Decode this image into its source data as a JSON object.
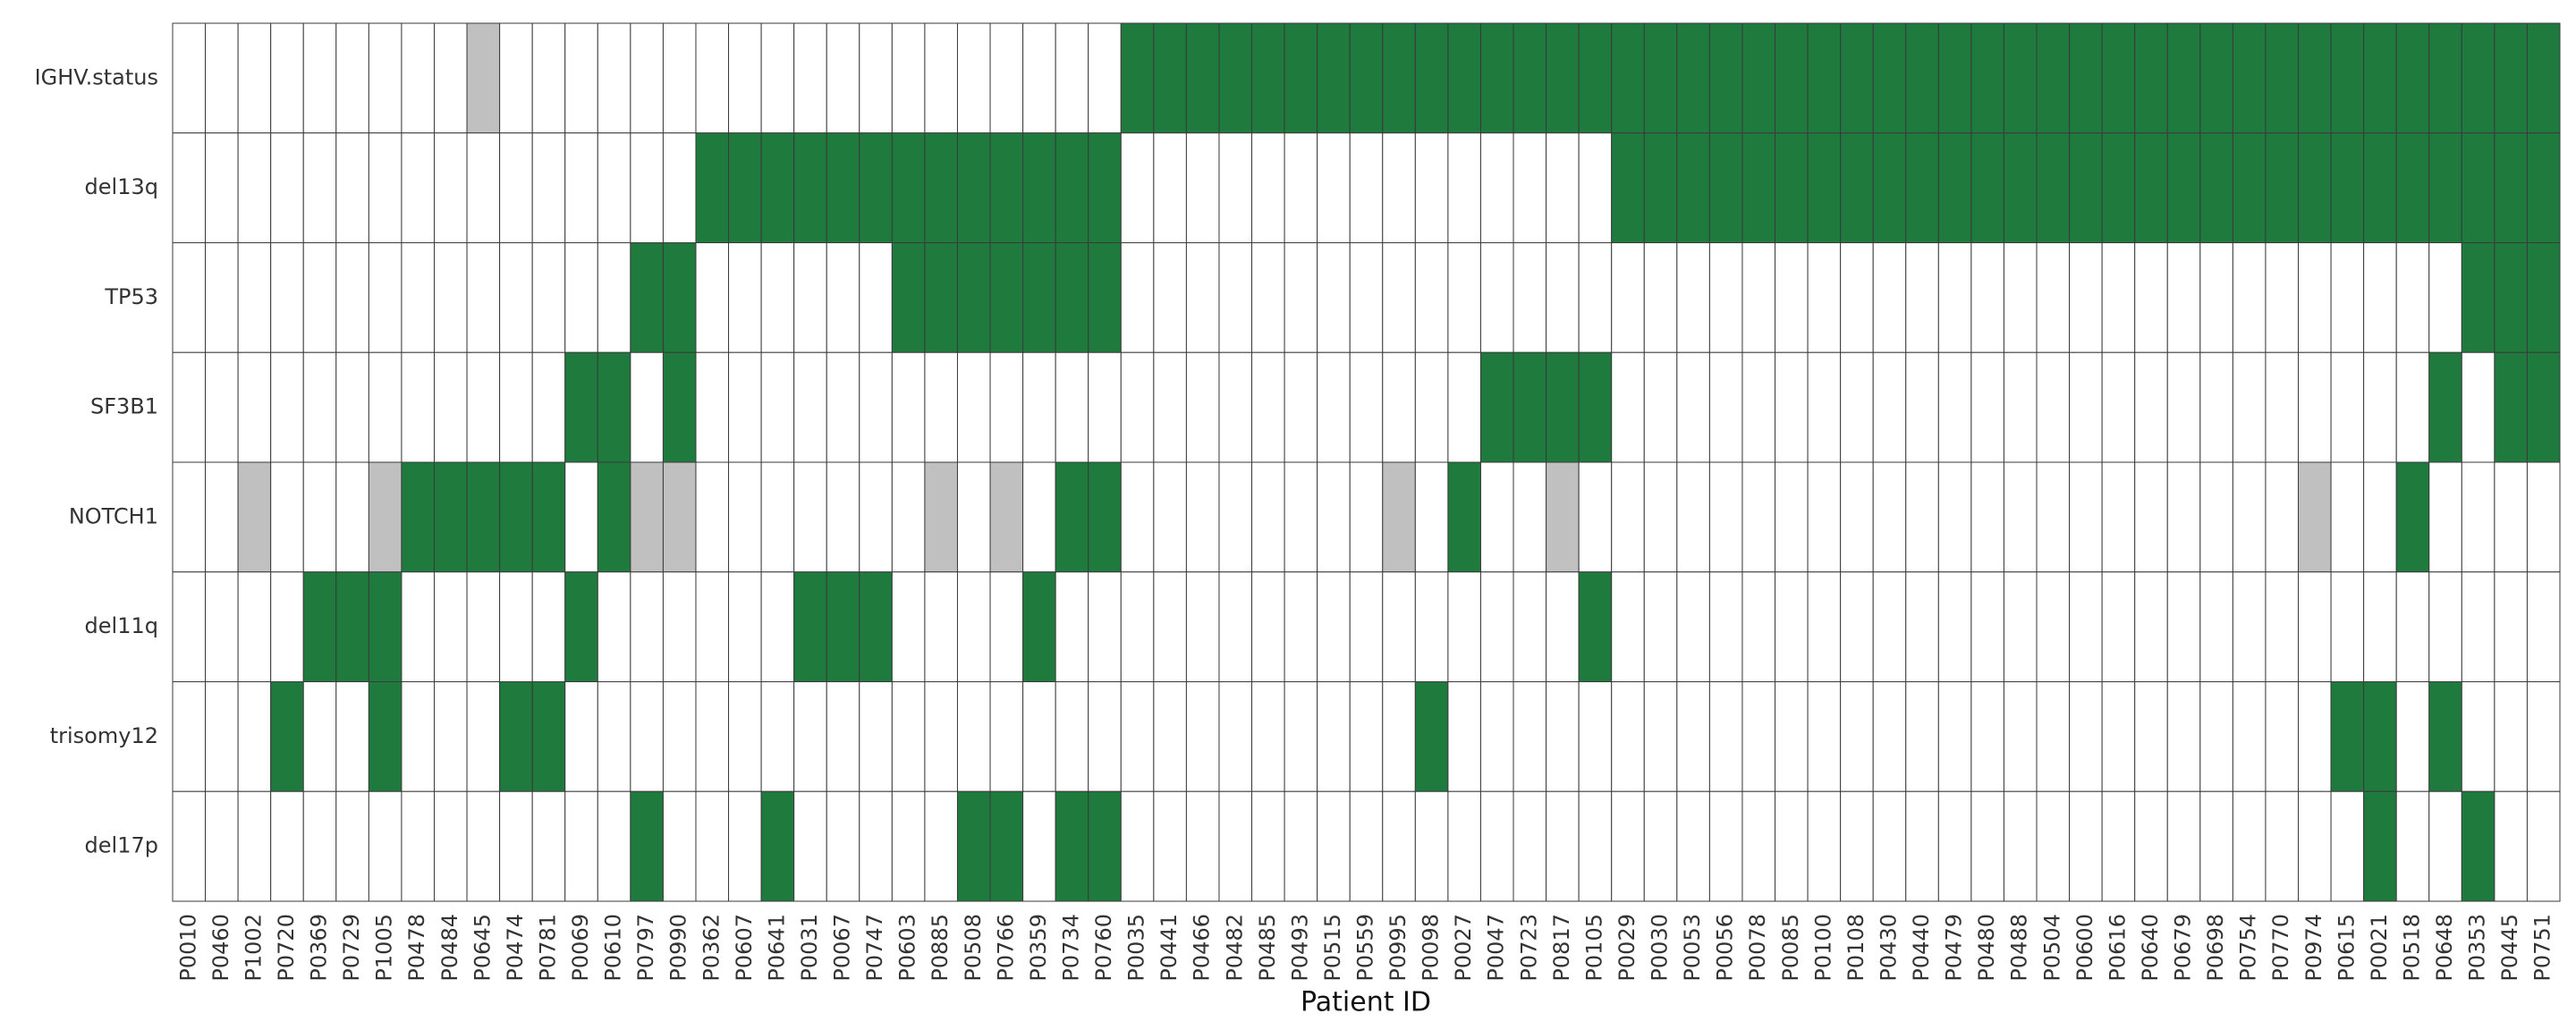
{
  "chart_data": {
    "type": "heatmap",
    "x_label": "Patient ID",
    "color": "#1f7a3e",
    "empty_color": "#ffffff",
    "missing_color": "#c0c0c0",
    "categories": [
      "P0010",
      "P0460",
      "P1002",
      "P0720",
      "P0369",
      "P0729",
      "P1005",
      "P0478",
      "P0484",
      "P0645",
      "P0474",
      "P0781",
      "P0069",
      "P0610",
      "P0797",
      "P0990",
      "P0362",
      "P0607",
      "P0641",
      "P0031",
      "P0067",
      "P0747",
      "P0603",
      "P0885",
      "P0508",
      "P0766",
      "P0359",
      "P0734",
      "P0760",
      "P0035",
      "P0441",
      "P0466",
      "P0482",
      "P0485",
      "P0493",
      "P0515",
      "P0559",
      "P0995",
      "P0098",
      "P0027",
      "P0047",
      "P0723",
      "P0817",
      "P0105",
      "P0029",
      "P0030",
      "P0053",
      "P0056",
      "P0078",
      "P0085",
      "P0100",
      "P0108",
      "P0430",
      "P0440",
      "P0479",
      "P0480",
      "P0488",
      "P0504",
      "P0600",
      "P0616",
      "P0640",
      "P0679",
      "P0698",
      "P0754",
      "P0770",
      "P0974",
      "P0615",
      "P0021",
      "P0518",
      "P0648",
      "P0353",
      "P0445",
      "P0751"
    ],
    "series": [
      {
        "name": "IGHV.status",
        "values": [
          0,
          0,
          0,
          0,
          0,
          0,
          0,
          0,
          0,
          null,
          0,
          0,
          0,
          0,
          0,
          0,
          0,
          0,
          0,
          0,
          0,
          0,
          0,
          0,
          0,
          0,
          0,
          0,
          0,
          1,
          1,
          1,
          1,
          1,
          1,
          1,
          1,
          1,
          1,
          1,
          1,
          1,
          1,
          1,
          1,
          1,
          1,
          1,
          1,
          1,
          1,
          1,
          1,
          1,
          1,
          1,
          1,
          1,
          1,
          1,
          1,
          1,
          1,
          1,
          1,
          1,
          1,
          1,
          1,
          1,
          1,
          1,
          1
        ]
      },
      {
        "name": "del13q",
        "values": [
          0,
          0,
          0,
          0,
          0,
          0,
          0,
          0,
          0,
          0,
          0,
          0,
          0,
          0,
          0,
          0,
          1,
          1,
          1,
          1,
          1,
          1,
          1,
          1,
          1,
          1,
          1,
          1,
          1,
          0,
          0,
          0,
          0,
          0,
          0,
          0,
          0,
          0,
          0,
          0,
          0,
          0,
          0,
          0,
          1,
          1,
          1,
          1,
          1,
          1,
          1,
          1,
          1,
          1,
          1,
          1,
          1,
          1,
          1,
          1,
          1,
          1,
          1,
          1,
          1,
          1,
          1,
          1,
          1,
          1,
          1,
          1,
          1
        ]
      },
      {
        "name": "TP53",
        "values": [
          0,
          0,
          0,
          0,
          0,
          0,
          0,
          0,
          0,
          0,
          0,
          0,
          0,
          0,
          1,
          1,
          0,
          0,
          0,
          0,
          0,
          0,
          1,
          1,
          1,
          1,
          1,
          1,
          1,
          0,
          0,
          0,
          0,
          0,
          0,
          0,
          0,
          0,
          0,
          0,
          0,
          0,
          0,
          0,
          0,
          0,
          0,
          0,
          0,
          0,
          0,
          0,
          0,
          0,
          0,
          0,
          0,
          0,
          0,
          0,
          0,
          0,
          0,
          0,
          0,
          0,
          0,
          0,
          0,
          0,
          1,
          1,
          1
        ]
      },
      {
        "name": "SF3B1",
        "values": [
          0,
          0,
          0,
          0,
          0,
          0,
          0,
          0,
          0,
          0,
          0,
          0,
          1,
          1,
          0,
          1,
          0,
          0,
          0,
          0,
          0,
          0,
          0,
          0,
          0,
          0,
          0,
          0,
          0,
          0,
          0,
          0,
          0,
          0,
          0,
          0,
          0,
          0,
          0,
          0,
          1,
          1,
          1,
          1,
          0,
          0,
          0,
          0,
          0,
          0,
          0,
          0,
          0,
          0,
          0,
          0,
          0,
          0,
          0,
          0,
          0,
          0,
          0,
          0,
          0,
          0,
          0,
          0,
          0,
          1,
          0,
          1,
          1
        ]
      },
      {
        "name": "NOTCH1",
        "values": [
          0,
          0,
          null,
          0,
          0,
          0,
          null,
          1,
          1,
          1,
          1,
          1,
          0,
          1,
          null,
          null,
          0,
          0,
          0,
          0,
          0,
          0,
          0,
          null,
          0,
          null,
          0,
          1,
          1,
          0,
          0,
          0,
          0,
          0,
          0,
          0,
          0,
          null,
          0,
          1,
          0,
          0,
          null,
          0,
          0,
          0,
          0,
          0,
          0,
          0,
          0,
          0,
          0,
          0,
          0,
          0,
          0,
          0,
          0,
          0,
          0,
          0,
          0,
          0,
          0,
          null,
          0,
          0,
          1,
          0,
          0,
          0,
          0
        ]
      },
      {
        "name": "del11q",
        "values": [
          0,
          0,
          0,
          0,
          1,
          1,
          1,
          0,
          0,
          0,
          0,
          0,
          1,
          0,
          0,
          0,
          0,
          0,
          0,
          1,
          1,
          1,
          0,
          0,
          0,
          0,
          1,
          0,
          0,
          0,
          0,
          0,
          0,
          0,
          0,
          0,
          0,
          0,
          0,
          0,
          0,
          0,
          0,
          1,
          0,
          0,
          0,
          0,
          0,
          0,
          0,
          0,
          0,
          0,
          0,
          0,
          0,
          0,
          0,
          0,
          0,
          0,
          0,
          0,
          0,
          0,
          0,
          0,
          0,
          0,
          0,
          0,
          0
        ]
      },
      {
        "name": "trisomy12",
        "values": [
          0,
          0,
          0,
          1,
          0,
          0,
          1,
          0,
          0,
          0,
          1,
          1,
          0,
          0,
          0,
          0,
          0,
          0,
          0,
          0,
          0,
          0,
          0,
          0,
          0,
          0,
          0,
          0,
          0,
          0,
          0,
          0,
          0,
          0,
          0,
          0,
          0,
          0,
          1,
          0,
          0,
          0,
          0,
          0,
          0,
          0,
          0,
          0,
          0,
          0,
          0,
          0,
          0,
          0,
          0,
          0,
          0,
          0,
          0,
          0,
          0,
          0,
          0,
          0,
          0,
          0,
          1,
          1,
          0,
          1,
          0,
          0,
          0
        ]
      },
      {
        "name": "del17p",
        "values": [
          0,
          0,
          0,
          0,
          0,
          0,
          0,
          0,
          0,
          0,
          0,
          0,
          0,
          0,
          1,
          0,
          0,
          0,
          1,
          0,
          0,
          0,
          0,
          0,
          1,
          1,
          0,
          1,
          1,
          0,
          0,
          0,
          0,
          0,
          0,
          0,
          0,
          0,
          0,
          0,
          0,
          0,
          0,
          0,
          0,
          0,
          0,
          0,
          0,
          0,
          0,
          0,
          0,
          0,
          0,
          0,
          0,
          0,
          0,
          0,
          0,
          0,
          0,
          0,
          0,
          0,
          0,
          1,
          0,
          0,
          1,
          0,
          0
        ]
      }
    ]
  }
}
